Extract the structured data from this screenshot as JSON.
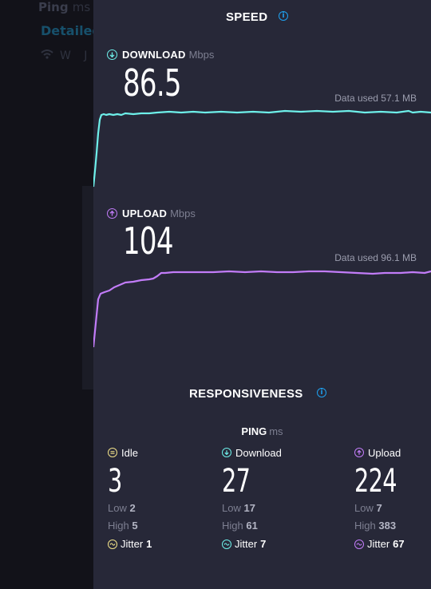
{
  "background": {
    "ping_label": "Ping",
    "ping_unit": "ms",
    "detailed_label": "Detailed",
    "wifi_text": "W J D"
  },
  "speed": {
    "title": "SPEED",
    "download": {
      "label": "DOWNLOAD",
      "unit": "Mbps",
      "value": "86.5",
      "data_used": "Data used 57.1 MB",
      "color": "#6ef0ea"
    },
    "upload": {
      "label": "UPLOAD",
      "unit": "Mbps",
      "value": "104",
      "data_used": "Data used 96.1 MB",
      "color": "#c27cf8"
    }
  },
  "responsiveness": {
    "title": "RESPONSIVENESS",
    "ping_label": "PING",
    "ping_unit": "ms",
    "idle": {
      "label": "Idle",
      "value": "3",
      "low_label": "Low",
      "low": "2",
      "high_label": "High",
      "high": "5",
      "jitter_label": "Jitter",
      "jitter": "1",
      "color": "#f3e38a"
    },
    "download": {
      "label": "Download",
      "value": "27",
      "low_label": "Low",
      "low": "17",
      "high_label": "High",
      "high": "61",
      "jitter_label": "Jitter",
      "jitter": "7",
      "color": "#6ef0ea"
    },
    "upload": {
      "label": "Upload",
      "value": "224",
      "low_label": "Low",
      "low": "7",
      "high_label": "High",
      "high": "383",
      "jitter_label": "Jitter",
      "jitter": "67",
      "color": "#c27cf8"
    }
  }
}
